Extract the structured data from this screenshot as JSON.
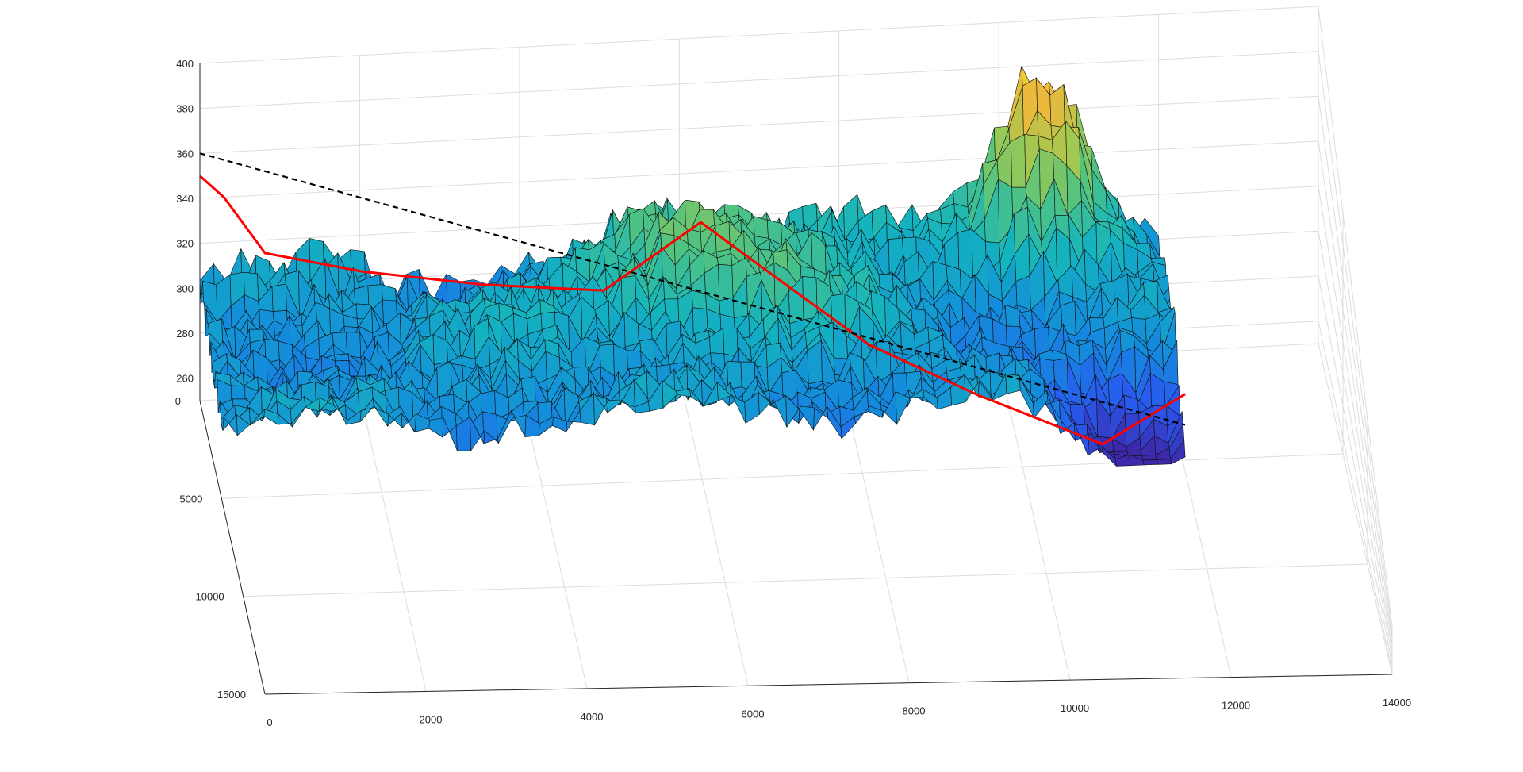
{
  "chart_data": {
    "type": "surface",
    "title": "",
    "xlabel": "",
    "ylabel": "",
    "zlabel": "",
    "x_ticks": [
      0,
      2000,
      4000,
      6000,
      8000,
      10000,
      12000,
      14000
    ],
    "y_ticks": [
      0,
      5000,
      10000,
      15000
    ],
    "z_ticks": [
      260,
      280,
      300,
      320,
      340,
      360,
      380,
      400
    ],
    "xlim": [
      0,
      14000
    ],
    "ylim": [
      0,
      15000
    ],
    "zlim": [
      250,
      400
    ],
    "grid": true,
    "colormap": "parula",
    "surface_extent": {
      "x": [
        0,
        12000
      ],
      "y": [
        0,
        5500
      ]
    },
    "surface_z_range": [
      255,
      390
    ],
    "line_series": [
      {
        "style": "red-solid",
        "color": "#ff0000",
        "points": [
          [
            0,
            0,
            350
          ],
          [
            300,
            0,
            340
          ],
          [
            800,
            300,
            318
          ],
          [
            2000,
            500,
            310
          ],
          [
            3500,
            800,
            305
          ],
          [
            5000,
            1000,
            302
          ],
          [
            6200,
            1200,
            335
          ],
          [
            7200,
            2000,
            315
          ],
          [
            8200,
            3000,
            296
          ],
          [
            9500,
            4000,
            280
          ],
          [
            11000,
            5000,
            262
          ],
          [
            12000,
            5500,
            300
          ]
        ]
      },
      {
        "style": "black-dashed",
        "color": "#000000",
        "points": [
          [
            0,
            0,
            360
          ],
          [
            12000,
            5500,
            280
          ]
        ]
      }
    ]
  }
}
